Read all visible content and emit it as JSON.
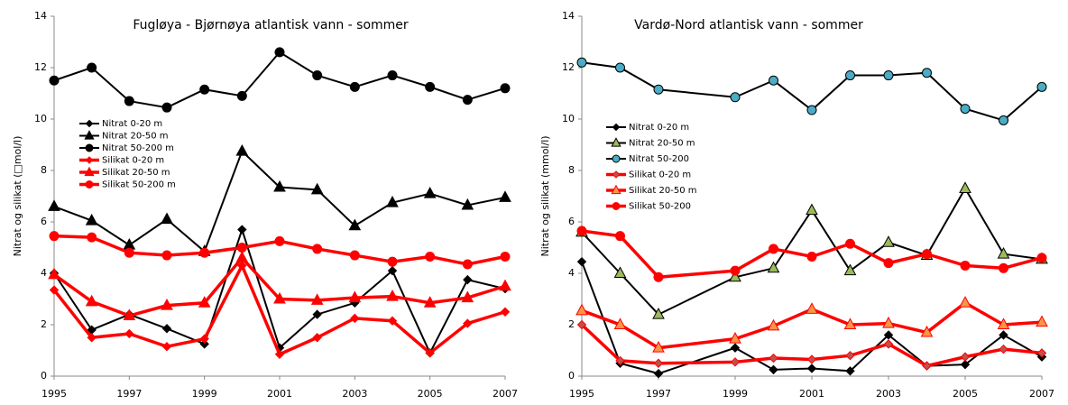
{
  "chart_data": [
    {
      "type": "line",
      "title": "Fugløya - Bjørnøya atlantisk vann - sommer",
      "y_label": "Nitrat og silikat (□mol/l)",
      "x": [
        1995,
        1996,
        1997,
        1998,
        1999,
        2000,
        2001,
        2002,
        2003,
        2004,
        2005,
        2006,
        2007
      ],
      "xlim": [
        1995,
        2007
      ],
      "xticks": [
        1995,
        1997,
        1999,
        2001,
        2003,
        2005,
        2007
      ],
      "ylim": [
        0,
        14
      ],
      "yticks": [
        0,
        2,
        4,
        6,
        8,
        10,
        12,
        14
      ],
      "series": [
        {
          "name": "Nitrat 0-20 m",
          "color": "#000000",
          "marker": "diamond",
          "marker_fill": "#000000",
          "values": [
            4.0,
            1.8,
            2.4,
            1.85,
            1.25,
            5.7,
            1.1,
            2.4,
            2.85,
            4.1,
            0.9,
            3.75,
            3.4
          ]
        },
        {
          "name": "Nitrat 20-50 m",
          "color": "#000000",
          "marker": "triangle",
          "marker_fill": "#000000",
          "values": [
            6.6,
            6.05,
            5.1,
            6.1,
            4.85,
            8.75,
            7.35,
            7.25,
            5.85,
            6.75,
            7.1,
            6.65,
            6.95
          ]
        },
        {
          "name": "Nitrat 50-200 m",
          "color": "#000000",
          "marker": "circle",
          "marker_fill": "#000000",
          "values": [
            11.5,
            12.0,
            10.7,
            10.45,
            11.15,
            10.9,
            12.6,
            11.7,
            11.25,
            11.7,
            11.25,
            10.75,
            11.2
          ]
        },
        {
          "name": "Silikat 0-20 m",
          "color": "#ff0000",
          "marker": "diamond",
          "marker_fill": "#ff0000",
          "values": [
            3.35,
            1.5,
            1.65,
            1.15,
            1.45,
            4.3,
            0.85,
            1.5,
            2.25,
            2.15,
            0.9,
            2.05,
            2.5
          ]
        },
        {
          "name": "Silikat 20-50 m",
          "color": "#ff0000",
          "marker": "triangle",
          "marker_fill": "#ff0000",
          "values": [
            3.95,
            2.9,
            2.35,
            2.75,
            2.85,
            4.6,
            3.0,
            2.95,
            3.05,
            3.1,
            2.85,
            3.05,
            3.5
          ]
        },
        {
          "name": "Silikat 50-200 m",
          "color": "#ff0000",
          "marker": "circle",
          "marker_fill": "#ff0000",
          "values": [
            5.45,
            5.4,
            4.8,
            4.7,
            4.8,
            5.0,
            5.25,
            4.95,
            4.7,
            4.45,
            4.65,
            4.35,
            4.65
          ]
        }
      ]
    },
    {
      "type": "line",
      "title": "Vardø-Nord atlantisk vann - sommer",
      "y_label": "Nitrat og silikat (mmol/l)",
      "x": [
        1995,
        1996,
        1997,
        1999,
        2000,
        2001,
        2002,
        2003,
        2004,
        2005,
        2006,
        2007
      ],
      "xlim": [
        1995,
        2007
      ],
      "xticks": [
        1995,
        1997,
        1999,
        2001,
        2003,
        2005,
        2007
      ],
      "ylim": [
        0,
        14
      ],
      "yticks": [
        0,
        2,
        4,
        6,
        8,
        10,
        12,
        14
      ],
      "series": [
        {
          "name": "Nitrat 0-20 m",
          "color": "#000000",
          "marker": "diamond",
          "marker_fill": "#000000",
          "values": [
            4.45,
            0.5,
            0.1,
            1.1,
            0.25,
            0.3,
            0.2,
            1.6,
            0.4,
            0.45,
            1.6,
            0.75
          ]
        },
        {
          "name": "Nitrat 20-50 m",
          "color": "#000000",
          "marker": "triangle",
          "marker_fill": "#9bbb59",
          "values": [
            5.6,
            4.0,
            2.4,
            3.85,
            4.2,
            6.45,
            4.1,
            5.2,
            4.7,
            7.3,
            4.75,
            4.55
          ]
        },
        {
          "name": "Nitrat 50-200",
          "color": "#000000",
          "marker": "circle",
          "marker_fill": "#4bacc6",
          "values": [
            12.2,
            12.0,
            11.15,
            10.85,
            11.5,
            10.35,
            11.7,
            11.7,
            11.8,
            10.4,
            9.95,
            11.25
          ]
        },
        {
          "name": "Silikat 0-20 m",
          "color": "#ff0000",
          "marker": "diamond",
          "marker_fill": "#c0504d",
          "values": [
            2.0,
            0.6,
            0.5,
            0.55,
            0.7,
            0.65,
            0.8,
            1.25,
            0.4,
            0.75,
            1.05,
            0.9
          ]
        },
        {
          "name": "Silikat 20-50 m",
          "color": "#ff0000",
          "marker": "triangle",
          "marker_fill": "#f79646",
          "values": [
            2.55,
            2.0,
            1.1,
            1.45,
            1.95,
            2.6,
            2.0,
            2.05,
            1.7,
            2.85,
            2.0,
            2.1
          ]
        },
        {
          "name": "Silikat 50-200",
          "color": "#ff0000",
          "marker": "circle",
          "marker_fill": "#ff0000",
          "values": [
            5.65,
            5.45,
            3.85,
            4.1,
            4.95,
            4.65,
            5.15,
            4.4,
            4.75,
            4.3,
            4.2,
            4.6
          ]
        }
      ]
    }
  ]
}
